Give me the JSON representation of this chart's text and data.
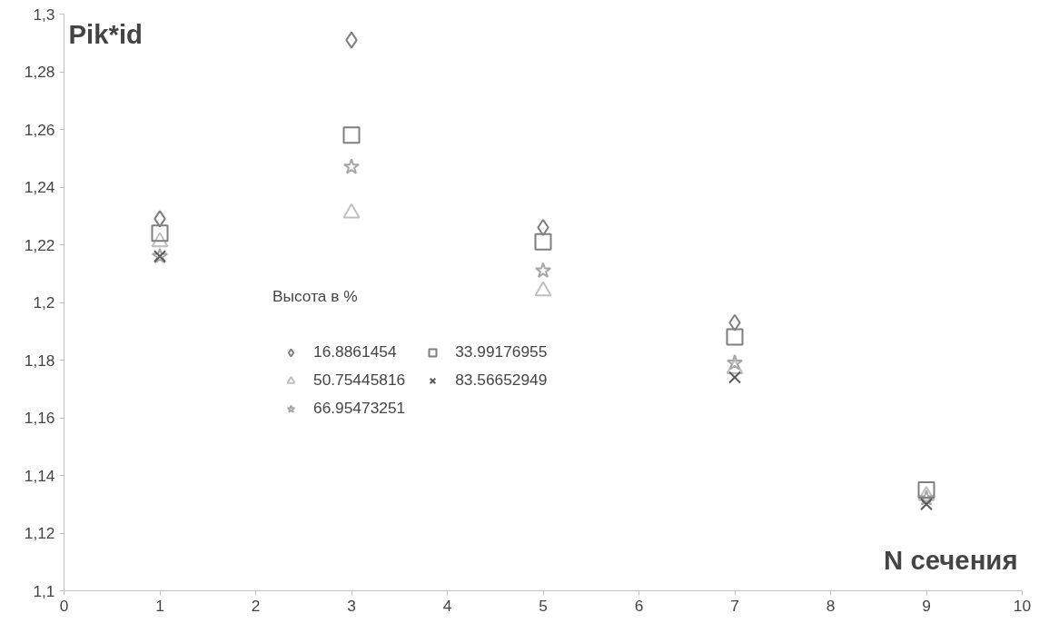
{
  "chart_data": {
    "type": "scatter",
    "title": "Pik*id",
    "xlabel": "N сечения",
    "legend_title": "Высота в %",
    "legend": "center",
    "x": [
      1,
      3,
      5,
      7,
      9
    ],
    "series": [
      {
        "name": "16.8861454",
        "color": "#7f7f7f",
        "marker": "diamond",
        "values": [
          1.229,
          1.291,
          1.226,
          1.193,
          null
        ]
      },
      {
        "name": "50.75445816",
        "color": "#bfbfbf",
        "marker": "triangle",
        "values": [
          1.221,
          1.231,
          1.204,
          1.177,
          1.133
        ]
      },
      {
        "name": "66.95473251",
        "color": "#a6a6a6",
        "marker": "star",
        "values": [
          1.216,
          1.247,
          1.211,
          1.179,
          1.132
        ]
      },
      {
        "name": "33.99176955",
        "color": "#7f7f7f",
        "marker": "square",
        "values": [
          1.224,
          1.258,
          1.221,
          1.188,
          1.135
        ]
      },
      {
        "name": "83.56652949",
        "color": "#595959",
        "marker": "cross",
        "values": [
          1.216,
          null,
          null,
          1.174,
          1.13
        ]
      }
    ],
    "xlim": [
      0,
      10
    ],
    "xticks": [
      0,
      1,
      2,
      3,
      4,
      5,
      6,
      7,
      8,
      9,
      10
    ],
    "ylim": [
      1.1,
      1.3
    ],
    "yticks": [
      {
        "value": 1.1,
        "label": "1,1"
      },
      {
        "value": 1.12,
        "label": "1,12"
      },
      {
        "value": 1.14,
        "label": "1,14"
      },
      {
        "value": 1.16,
        "label": "1,16"
      },
      {
        "value": 1.18,
        "label": "1,18"
      },
      {
        "value": 1.2,
        "label": "1,2"
      },
      {
        "value": 1.22,
        "label": "1,22"
      },
      {
        "value": 1.24,
        "label": "1,24"
      },
      {
        "value": 1.26,
        "label": "1,26"
      },
      {
        "value": 1.28,
        "label": "1,28"
      },
      {
        "value": 1.3,
        "label": "1,3"
      }
    ],
    "grid": false
  }
}
